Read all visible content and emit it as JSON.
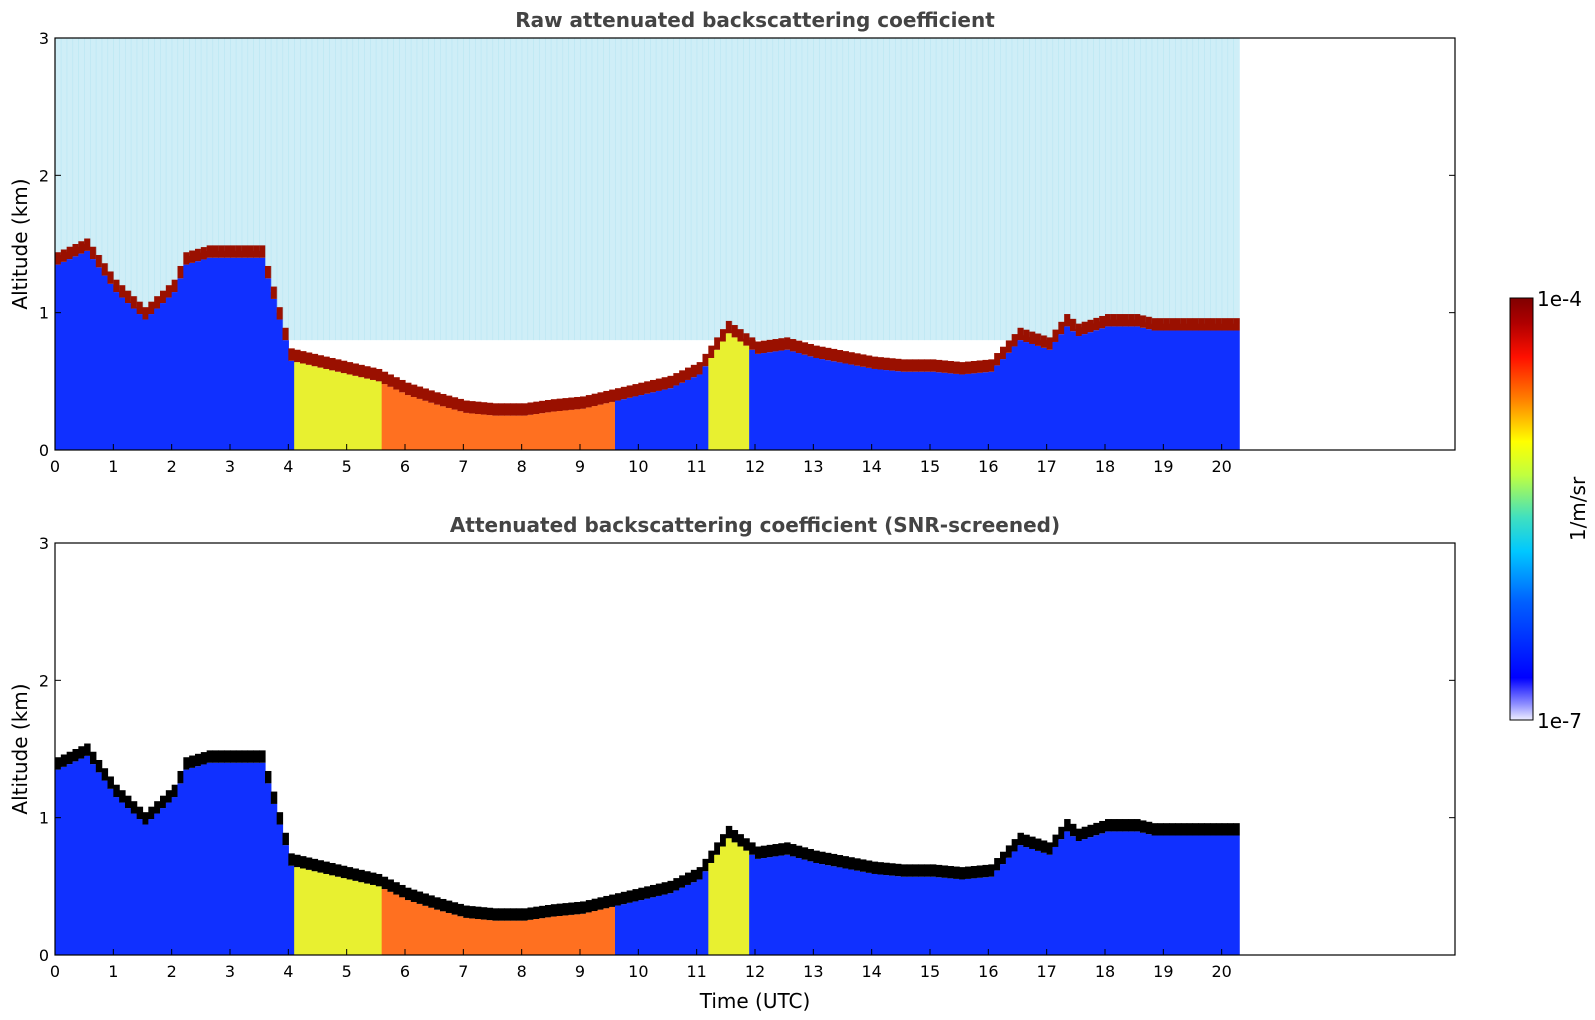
{
  "figure": {
    "colorbar": {
      "label": "1/m/sr",
      "max_label": "1e-4",
      "min_label": "1e-7",
      "scale": "log",
      "range": [
        1e-07,
        0.0001
      ],
      "colormap": [
        "#eeeeff",
        "#8888ff",
        "#0000ff",
        "#0060ff",
        "#00c8ff",
        "#40e0c0",
        "#c0ff40",
        "#ffff00",
        "#ff8000",
        "#ff1000",
        "#b00000",
        "#800000"
      ]
    }
  },
  "chart_data": [
    {
      "type": "heatmap",
      "title": "Raw attenuated backscattering coefficient",
      "xlabel": "",
      "ylabel": "Altitude (km)",
      "xlim": [
        0,
        24
      ],
      "ylim": [
        0,
        3
      ],
      "x_ticks": [
        "0",
        "1",
        "2",
        "3",
        "4",
        "5",
        "6",
        "7",
        "8",
        "9",
        "10",
        "11",
        "12",
        "13",
        "14",
        "15",
        "16",
        "17",
        "18",
        "19",
        "20"
      ],
      "y_ticks": [
        "0",
        "1",
        "2",
        "3"
      ],
      "data_end_hour": 20.3,
      "grid": false,
      "layer_top_km": {
        "x": [
          0,
          0.5,
          1,
          1.5,
          2,
          2.2,
          2.6,
          3,
          3.5,
          4,
          4.5,
          5,
          5.5,
          6,
          6.5,
          7,
          7.5,
          8,
          8.5,
          9,
          9.5,
          10,
          10.5,
          11,
          11.5,
          12,
          12.5,
          13,
          13.5,
          14,
          14.5,
          15,
          15.5,
          16,
          16.5,
          17,
          17.3,
          17.5,
          18,
          18.5,
          18.8
        ],
        "y": [
          1.4,
          1.5,
          1.2,
          1.0,
          1.2,
          1.4,
          1.45,
          1.45,
          1.45,
          0.7,
          0.65,
          0.6,
          0.55,
          0.45,
          0.38,
          0.32,
          0.3,
          0.3,
          0.33,
          0.35,
          0.4,
          0.45,
          0.5,
          0.6,
          0.9,
          0.75,
          0.78,
          0.72,
          0.68,
          0.64,
          0.62,
          0.62,
          0.6,
          0.62,
          0.85,
          0.78,
          0.95,
          0.88,
          0.95,
          0.95,
          0.92
        ]
      }
    },
    {
      "type": "heatmap",
      "title": "Attenuated backscattering coefficient (SNR-screened)",
      "xlabel": "Time (UTC)",
      "ylabel": "Altitude (km)",
      "xlim": [
        0,
        24
      ],
      "ylim": [
        0,
        3
      ],
      "x_ticks": [
        "0",
        "1",
        "2",
        "3",
        "4",
        "5",
        "6",
        "7",
        "8",
        "9",
        "10",
        "11",
        "12",
        "13",
        "14",
        "15",
        "16",
        "17",
        "18",
        "19",
        "20"
      ],
      "y_ticks": [
        "0",
        "1",
        "2",
        "3"
      ],
      "data_end_hour": 20.3,
      "grid": false
    }
  ]
}
